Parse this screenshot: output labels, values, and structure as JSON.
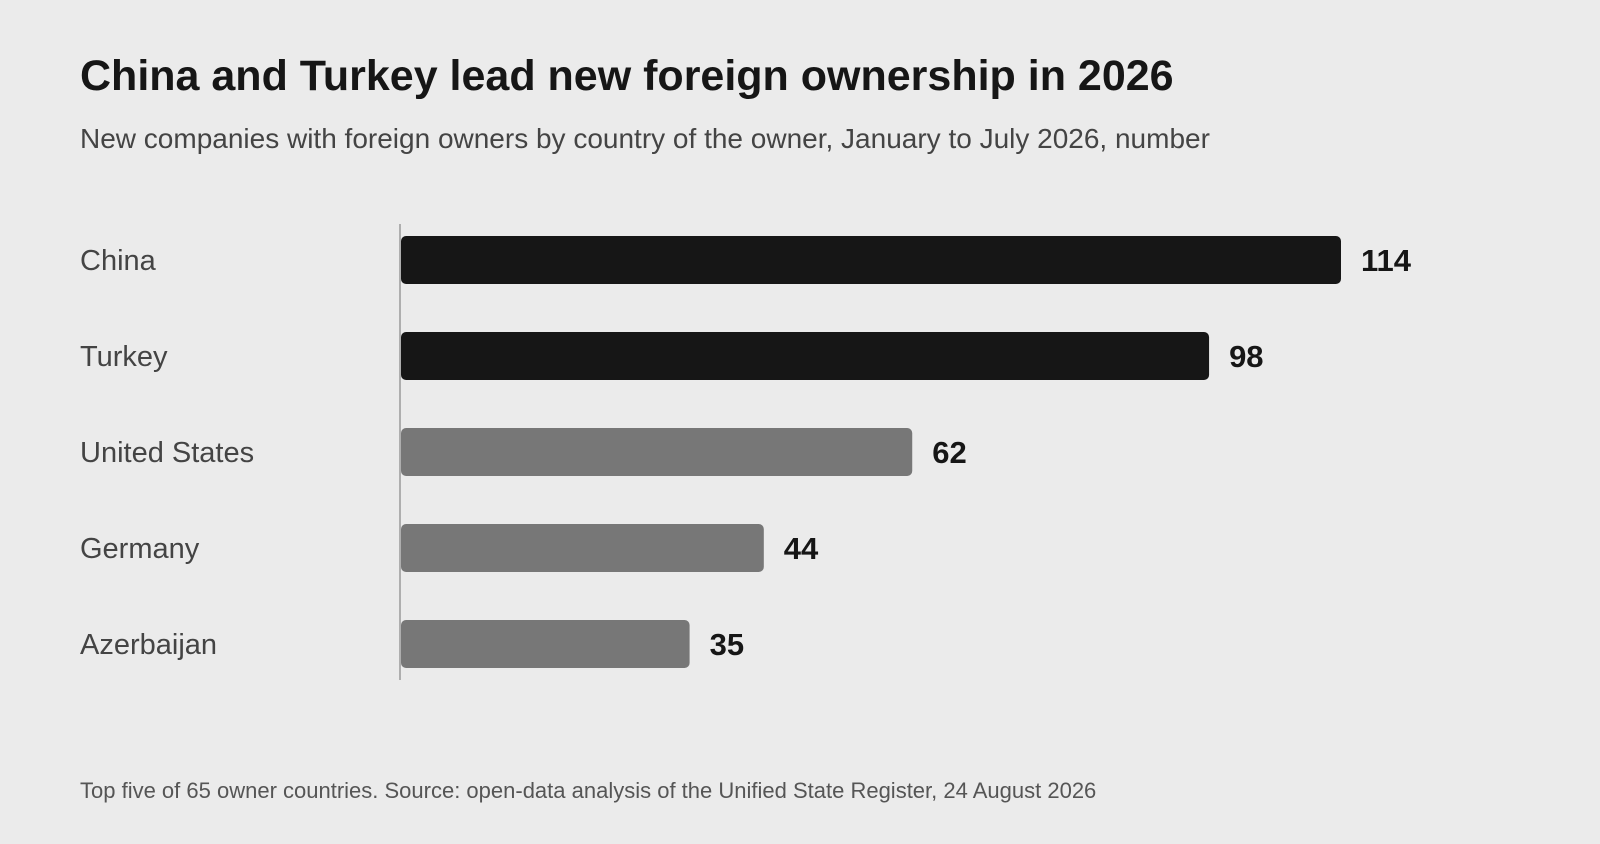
{
  "title": "China and Turkey lead new foreign ownership in 2026",
  "subtitle": "New companies with foreign owners by country of the owner, January to July 2026, number",
  "footnote": "Top five of 65 owner countries. Source: open-data analysis of the Unified State Register, 24 August 2026",
  "colors": {
    "background": "#ebebeb",
    "highlight": "#161616",
    "muted": "#777777",
    "axis": "#999999"
  },
  "chart_data": {
    "type": "bar",
    "orientation": "horizontal",
    "categories": [
      "China",
      "Turkey",
      "United States",
      "Germany",
      "Azerbaijan"
    ],
    "values": [
      114,
      98,
      62,
      44,
      35
    ],
    "highlighted": [
      "China",
      "Turkey"
    ],
    "title": "China and Turkey lead new foreign ownership in 2026",
    "subtitle": "New companies with foreign owners by country of the owner, January to July 2026, number",
    "xlim": [
      0,
      114
    ],
    "grid": false,
    "legend": "none"
  }
}
